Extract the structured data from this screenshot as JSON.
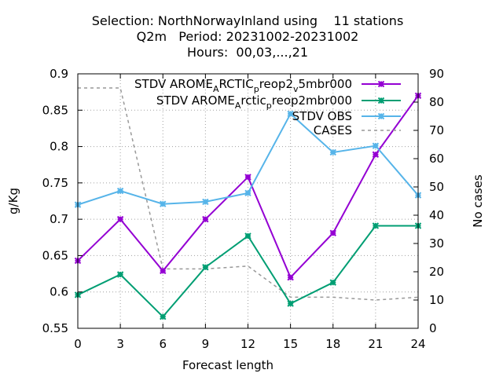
{
  "title_lines": [
    "Selection: NorthNorwayInland using    11 stations",
    "Q2m   Period: 20231002-20231002",
    "Hours:  00,03,...,21"
  ],
  "chart_data": {
    "type": "line",
    "x": [
      0,
      3,
      6,
      9,
      12,
      15,
      18,
      21,
      24
    ],
    "xlabel": "Forecast length",
    "ylabel": "g/Kg",
    "y2label": "No cases",
    "xlim": [
      0,
      24
    ],
    "ylim": [
      0.55,
      0.9
    ],
    "y2lim": [
      0,
      90
    ],
    "xticks": [
      0,
      3,
      6,
      9,
      12,
      15,
      18,
      21,
      24
    ],
    "yticks": [
      0.55,
      0.6,
      0.65,
      0.7,
      0.75,
      0.8,
      0.85,
      0.9
    ],
    "y2ticks": [
      0,
      10,
      20,
      30,
      40,
      50,
      60,
      70,
      80,
      90
    ],
    "grid": true,
    "legend_position": "top-right",
    "series": [
      {
        "name": "STDV AROME_ARCTIC_preop2_v5mbr000",
        "legend_parts": [
          [
            "STDV AROME",
            ""
          ],
          [
            "A",
            "sub"
          ],
          [
            "RCTIC",
            ""
          ],
          [
            "p",
            "sub"
          ],
          [
            "reop2",
            ""
          ],
          [
            "v",
            "sub"
          ],
          [
            "5mbr000",
            ""
          ]
        ],
        "color": "#9400d3",
        "marker": "x-star",
        "axis": "y",
        "values": [
          0.643,
          0.7,
          0.629,
          0.7,
          0.758,
          0.62,
          0.681,
          0.789,
          0.87
        ]
      },
      {
        "name": "STDV AROME_Arctic_preop2mbr000",
        "legend_parts": [
          [
            "STDV AROME",
            ""
          ],
          [
            "A",
            "sub"
          ],
          [
            "rctic",
            ""
          ],
          [
            "p",
            "sub"
          ],
          [
            "reop2mbr000",
            ""
          ]
        ],
        "color": "#009e73",
        "marker": "x-star",
        "axis": "y",
        "values": [
          0.596,
          0.624,
          0.566,
          0.634,
          0.677,
          0.584,
          0.613,
          0.691,
          0.691
        ]
      },
      {
        "name": "STDV OBS",
        "legend_parts": [
          [
            "STDV OBS",
            ""
          ]
        ],
        "color": "#56b4e9",
        "marker": "x-star",
        "axis": "y",
        "values": [
          0.72,
          0.739,
          0.721,
          0.724,
          0.736,
          0.845,
          0.792,
          0.801,
          0.733
        ]
      },
      {
        "name": "CASES",
        "legend_parts": [
          [
            "CASES",
            ""
          ]
        ],
        "color": "#999999",
        "marker": "none",
        "dashed": true,
        "axis": "y2",
        "values": [
          85,
          85,
          21,
          21,
          22,
          11,
          11,
          10,
          11
        ]
      }
    ]
  }
}
